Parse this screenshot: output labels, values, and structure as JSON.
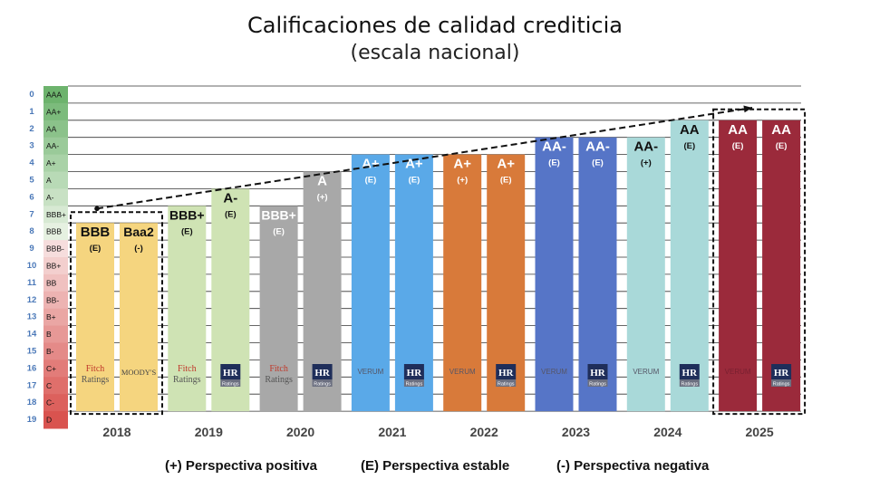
{
  "title": "Calificaciones de calidad crediticia",
  "subtitle": "(escala nacional)",
  "colors": {
    "scale_top": "#6db36d",
    "scale_bottom": "#d9534f",
    "2018": "#f5d57f",
    "2019": "#cfe3b4",
    "2020": "#a8a8a8",
    "2021": "#5aa9e8",
    "2022": "#d87a3a",
    "2023": "#5675c7",
    "2024": "#a9d9d9",
    "2025": "#9b2a3b"
  },
  "legend": {
    "positive": "(+) Perspectiva positiva",
    "stable": "(E) Perspectiva estable",
    "negative": "(-) Perspectiva negativa"
  },
  "chart_data": {
    "type": "bar",
    "title": "Calificaciones de calidad crediticia",
    "subtitle": "(escala nacional)",
    "y_axis_numbers": [
      0,
      1,
      2,
      3,
      4,
      5,
      6,
      7,
      8,
      9,
      10,
      11,
      12,
      13,
      14,
      15,
      16,
      17,
      18,
      19
    ],
    "y_axis_ratings": [
      "AAA",
      "AA+",
      "AA",
      "AA-",
      "A+",
      "A",
      "A-",
      "BBB+",
      "BBB",
      "BBB-",
      "BB+",
      "BB",
      "BB-",
      "B+",
      "B",
      "B-",
      "C+",
      "C",
      "C-",
      "D"
    ],
    "categories": [
      "2018",
      "2019",
      "2020",
      "2021",
      "2022",
      "2023",
      "2024",
      "2025"
    ],
    "bars": [
      {
        "year": "2018",
        "agency": "Fitch Ratings",
        "rating": "BBB",
        "outlook": "(E)",
        "level": 8
      },
      {
        "year": "2018",
        "agency": "MOODY'S",
        "rating": "Baa2",
        "outlook": "(-)",
        "level": 8
      },
      {
        "year": "2019",
        "agency": "Fitch Ratings",
        "rating": "BBB+",
        "outlook": "(E)",
        "level": 7
      },
      {
        "year": "2019",
        "agency": "HR Ratings",
        "rating": "A-",
        "outlook": "(E)",
        "level": 6
      },
      {
        "year": "2020",
        "agency": "Fitch Ratings",
        "rating": "BBB+",
        "outlook": "(E)",
        "level": 7
      },
      {
        "year": "2020",
        "agency": "HR Ratings",
        "rating": "A",
        "outlook": "(+)",
        "level": 5
      },
      {
        "year": "2021",
        "agency": "VERUM",
        "rating": "A+",
        "outlook": "(E)",
        "level": 4
      },
      {
        "year": "2021",
        "agency": "HR Ratings",
        "rating": "A+",
        "outlook": "(E)",
        "level": 4
      },
      {
        "year": "2022",
        "agency": "VERUM",
        "rating": "A+",
        "outlook": "(+)",
        "level": 4
      },
      {
        "year": "2022",
        "agency": "HR Ratings",
        "rating": "A+",
        "outlook": "(E)",
        "level": 4
      },
      {
        "year": "2023",
        "agency": "VERUM",
        "rating": "AA-",
        "outlook": "(E)",
        "level": 3
      },
      {
        "year": "2023",
        "agency": "HR Ratings",
        "rating": "AA-",
        "outlook": "(E)",
        "level": 3
      },
      {
        "year": "2024",
        "agency": "VERUM",
        "rating": "AA-",
        "outlook": "(+)",
        "level": 3
      },
      {
        "year": "2024",
        "agency": "HR Ratings",
        "rating": "AA",
        "outlook": "(E)",
        "level": 2
      },
      {
        "year": "2025",
        "agency": "VERUM",
        "rating": "AA",
        "outlook": "(E)",
        "level": 2
      },
      {
        "year": "2025",
        "agency": "HR Ratings",
        "rating": "AA",
        "outlook": "(E)",
        "level": 2
      }
    ],
    "logos": {
      "fitch_line1": "Fitch",
      "fitch_line2": "Ratings",
      "moodys": "MOODY'S",
      "verum": "VERUM",
      "hr": "HR",
      "hr_sub": "Ratings"
    },
    "trend_arrow": {
      "from_level": 7,
      "to_level": 0
    },
    "highlight_boxes": [
      "2018",
      "2025"
    ],
    "ylim": [
      0,
      19
    ],
    "grid": true
  }
}
